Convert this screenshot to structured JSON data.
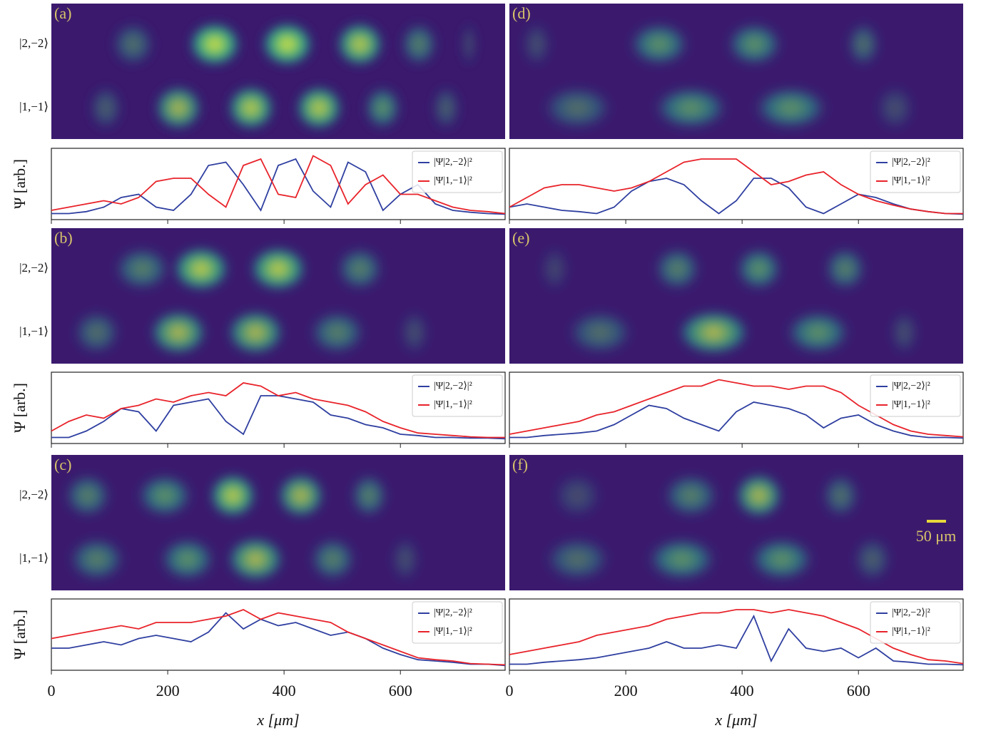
{
  "chart_data": [
    {
      "type": "line",
      "panel_label": "(a)",
      "state_labels": [
        "|2,−2⟩",
        "|1,−1⟩"
      ],
      "ylabel": "Ψ [arb.]",
      "x": [
        0,
        30,
        60,
        90,
        120,
        150,
        180,
        210,
        240,
        270,
        300,
        330,
        360,
        390,
        420,
        450,
        480,
        510,
        540,
        570,
        600,
        630,
        660,
        690,
        720,
        750,
        780
      ],
      "xlim": [
        0,
        780
      ],
      "xticks": [
        0,
        200,
        400,
        600
      ],
      "ylim": [
        0,
        1
      ],
      "series": [
        {
          "name": "|Ψ|2,−2⟩|²",
          "color": "#2f3fa0",
          "values": [
            0.05,
            0.05,
            0.08,
            0.15,
            0.3,
            0.35,
            0.15,
            0.1,
            0.35,
            0.8,
            0.85,
            0.5,
            0.1,
            0.8,
            0.9,
            0.4,
            0.15,
            0.85,
            0.7,
            0.1,
            0.35,
            0.5,
            0.2,
            0.1,
            0.07,
            0.05,
            0.04
          ]
        },
        {
          "name": "|Ψ|1,−1⟩|²",
          "color": "#e8232a",
          "values": [
            0.1,
            0.15,
            0.2,
            0.25,
            0.2,
            0.3,
            0.55,
            0.6,
            0.6,
            0.35,
            0.15,
            0.8,
            0.9,
            0.35,
            0.3,
            0.95,
            0.8,
            0.2,
            0.5,
            0.65,
            0.35,
            0.35,
            0.25,
            0.15,
            0.1,
            0.08,
            0.05
          ]
        }
      ]
    },
    {
      "type": "line",
      "panel_label": "(b)",
      "state_labels": [
        "|2,−2⟩",
        "|1,−1⟩"
      ],
      "ylabel": "Ψ [arb.]",
      "x": [
        0,
        30,
        60,
        90,
        120,
        150,
        180,
        210,
        240,
        270,
        300,
        330,
        360,
        390,
        420,
        450,
        480,
        510,
        540,
        570,
        600,
        630,
        660,
        690,
        720,
        750,
        780
      ],
      "xlim": [
        0,
        780
      ],
      "xticks": [
        0,
        200,
        400,
        600
      ],
      "ylim": [
        0,
        1
      ],
      "series": [
        {
          "name": "|Ψ|2,−2⟩|²",
          "color": "#2f3fa0",
          "values": [
            0.05,
            0.05,
            0.15,
            0.3,
            0.5,
            0.45,
            0.15,
            0.55,
            0.6,
            0.65,
            0.3,
            0.1,
            0.7,
            0.7,
            0.65,
            0.6,
            0.4,
            0.35,
            0.25,
            0.2,
            0.1,
            0.08,
            0.05,
            0.05,
            0.04,
            0.04,
            0.03
          ]
        },
        {
          "name": "|Ψ|1,−1⟩|²",
          "color": "#e8232a",
          "values": [
            0.15,
            0.3,
            0.4,
            0.35,
            0.5,
            0.55,
            0.65,
            0.6,
            0.7,
            0.75,
            0.7,
            0.9,
            0.85,
            0.7,
            0.75,
            0.65,
            0.6,
            0.55,
            0.45,
            0.3,
            0.2,
            0.12,
            0.1,
            0.08,
            0.06,
            0.05,
            0.05
          ]
        }
      ]
    },
    {
      "type": "line",
      "panel_label": "(c)",
      "state_labels": [
        "|2,−2⟩",
        "|1,−1⟩"
      ],
      "ylabel": "Ψ [arb.]",
      "xlabel": "x [μm]",
      "x": [
        0,
        30,
        60,
        90,
        120,
        150,
        180,
        210,
        240,
        270,
        300,
        330,
        360,
        390,
        420,
        450,
        480,
        510,
        540,
        570,
        600,
        630,
        660,
        690,
        720,
        750,
        780
      ],
      "xlim": [
        0,
        780
      ],
      "xticks": [
        0,
        200,
        400,
        600
      ],
      "ylim": [
        0,
        1
      ],
      "series": [
        {
          "name": "|Ψ|2,−2⟩|²",
          "color": "#2f3fa0",
          "values": [
            0.3,
            0.3,
            0.35,
            0.4,
            0.35,
            0.45,
            0.5,
            0.45,
            0.4,
            0.55,
            0.85,
            0.6,
            0.75,
            0.65,
            0.7,
            0.6,
            0.5,
            0.55,
            0.45,
            0.3,
            0.2,
            0.12,
            0.1,
            0.08,
            0.05,
            0.05,
            0.03
          ]
        },
        {
          "name": "|Ψ|1,−1⟩|²",
          "color": "#e8232a",
          "values": [
            0.45,
            0.5,
            0.55,
            0.6,
            0.65,
            0.6,
            0.7,
            0.7,
            0.7,
            0.75,
            0.8,
            0.9,
            0.75,
            0.85,
            0.8,
            0.75,
            0.7,
            0.55,
            0.45,
            0.35,
            0.25,
            0.15,
            0.12,
            0.1,
            0.06,
            0.05,
            0.04
          ]
        }
      ]
    },
    {
      "type": "line",
      "panel_label": "(d)",
      "ylabel_hidden": false,
      "x": [
        0,
        30,
        60,
        90,
        120,
        150,
        180,
        210,
        240,
        270,
        300,
        330,
        360,
        390,
        420,
        450,
        480,
        510,
        540,
        570,
        600,
        630,
        660,
        690,
        720,
        750,
        780
      ],
      "xlim": [
        0,
        780
      ],
      "xticks": [
        0,
        200,
        400,
        600
      ],
      "ylim": [
        0,
        1
      ],
      "series": [
        {
          "name": "|Ψ|2,−2⟩|²",
          "color": "#2f3fa0",
          "values": [
            0.15,
            0.2,
            0.15,
            0.1,
            0.08,
            0.05,
            0.15,
            0.4,
            0.55,
            0.6,
            0.5,
            0.25,
            0.05,
            0.25,
            0.6,
            0.6,
            0.45,
            0.15,
            0.05,
            0.2,
            0.35,
            0.3,
            0.2,
            0.12,
            0.08,
            0.05,
            0.04
          ]
        },
        {
          "name": "|Ψ|1,−1⟩|²",
          "color": "#e8232a",
          "values": [
            0.15,
            0.3,
            0.45,
            0.5,
            0.5,
            0.45,
            0.4,
            0.45,
            0.55,
            0.7,
            0.85,
            0.9,
            0.9,
            0.9,
            0.7,
            0.5,
            0.55,
            0.65,
            0.7,
            0.5,
            0.35,
            0.25,
            0.18,
            0.12,
            0.08,
            0.05,
            0.05
          ]
        }
      ]
    },
    {
      "type": "line",
      "panel_label": "(e)",
      "x": [
        0,
        30,
        60,
        90,
        120,
        150,
        180,
        210,
        240,
        270,
        300,
        330,
        360,
        390,
        420,
        450,
        480,
        510,
        540,
        570,
        600,
        630,
        660,
        690,
        720,
        750,
        780
      ],
      "xlim": [
        0,
        780
      ],
      "xticks": [
        0,
        200,
        400,
        600
      ],
      "ylim": [
        0,
        1
      ],
      "series": [
        {
          "name": "|Ψ|2,−2⟩|²",
          "color": "#2f3fa0",
          "values": [
            0.05,
            0.05,
            0.08,
            0.1,
            0.12,
            0.15,
            0.25,
            0.4,
            0.55,
            0.5,
            0.35,
            0.25,
            0.15,
            0.45,
            0.6,
            0.55,
            0.5,
            0.4,
            0.2,
            0.35,
            0.4,
            0.25,
            0.15,
            0.08,
            0.05,
            0.05,
            0.04
          ]
        },
        {
          "name": "|Ψ|1,−1⟩|²",
          "color": "#e8232a",
          "values": [
            0.1,
            0.15,
            0.2,
            0.25,
            0.3,
            0.4,
            0.45,
            0.55,
            0.65,
            0.75,
            0.85,
            0.85,
            0.95,
            0.9,
            0.85,
            0.85,
            0.8,
            0.85,
            0.85,
            0.75,
            0.55,
            0.4,
            0.25,
            0.15,
            0.1,
            0.08,
            0.06
          ]
        }
      ]
    },
    {
      "type": "line",
      "panel_label": "(f)",
      "scale_bar": "50 μm",
      "xlabel": "x [μm]",
      "x": [
        0,
        30,
        60,
        90,
        120,
        150,
        180,
        210,
        240,
        270,
        300,
        330,
        360,
        390,
        420,
        450,
        480,
        510,
        540,
        570,
        600,
        630,
        660,
        690,
        720,
        750,
        780
      ],
      "xlim": [
        0,
        780
      ],
      "xticks": [
        0,
        200,
        400,
        600
      ],
      "ylim": [
        0,
        1
      ],
      "series": [
        {
          "name": "|Ψ|2,−2⟩|²",
          "color": "#2f3fa0",
          "values": [
            0.05,
            0.05,
            0.08,
            0.1,
            0.12,
            0.15,
            0.2,
            0.25,
            0.3,
            0.4,
            0.3,
            0.3,
            0.35,
            0.3,
            0.8,
            0.1,
            0.6,
            0.3,
            0.25,
            0.3,
            0.15,
            0.3,
            0.1,
            0.08,
            0.05,
            0.05,
            0.04
          ]
        },
        {
          "name": "|Ψ|1,−1⟩|²",
          "color": "#e8232a",
          "values": [
            0.2,
            0.25,
            0.3,
            0.35,
            0.4,
            0.5,
            0.55,
            0.6,
            0.65,
            0.75,
            0.8,
            0.85,
            0.85,
            0.9,
            0.9,
            0.85,
            0.9,
            0.85,
            0.8,
            0.7,
            0.6,
            0.45,
            0.3,
            0.2,
            0.12,
            0.1,
            0.06
          ]
        }
      ]
    }
  ]
}
